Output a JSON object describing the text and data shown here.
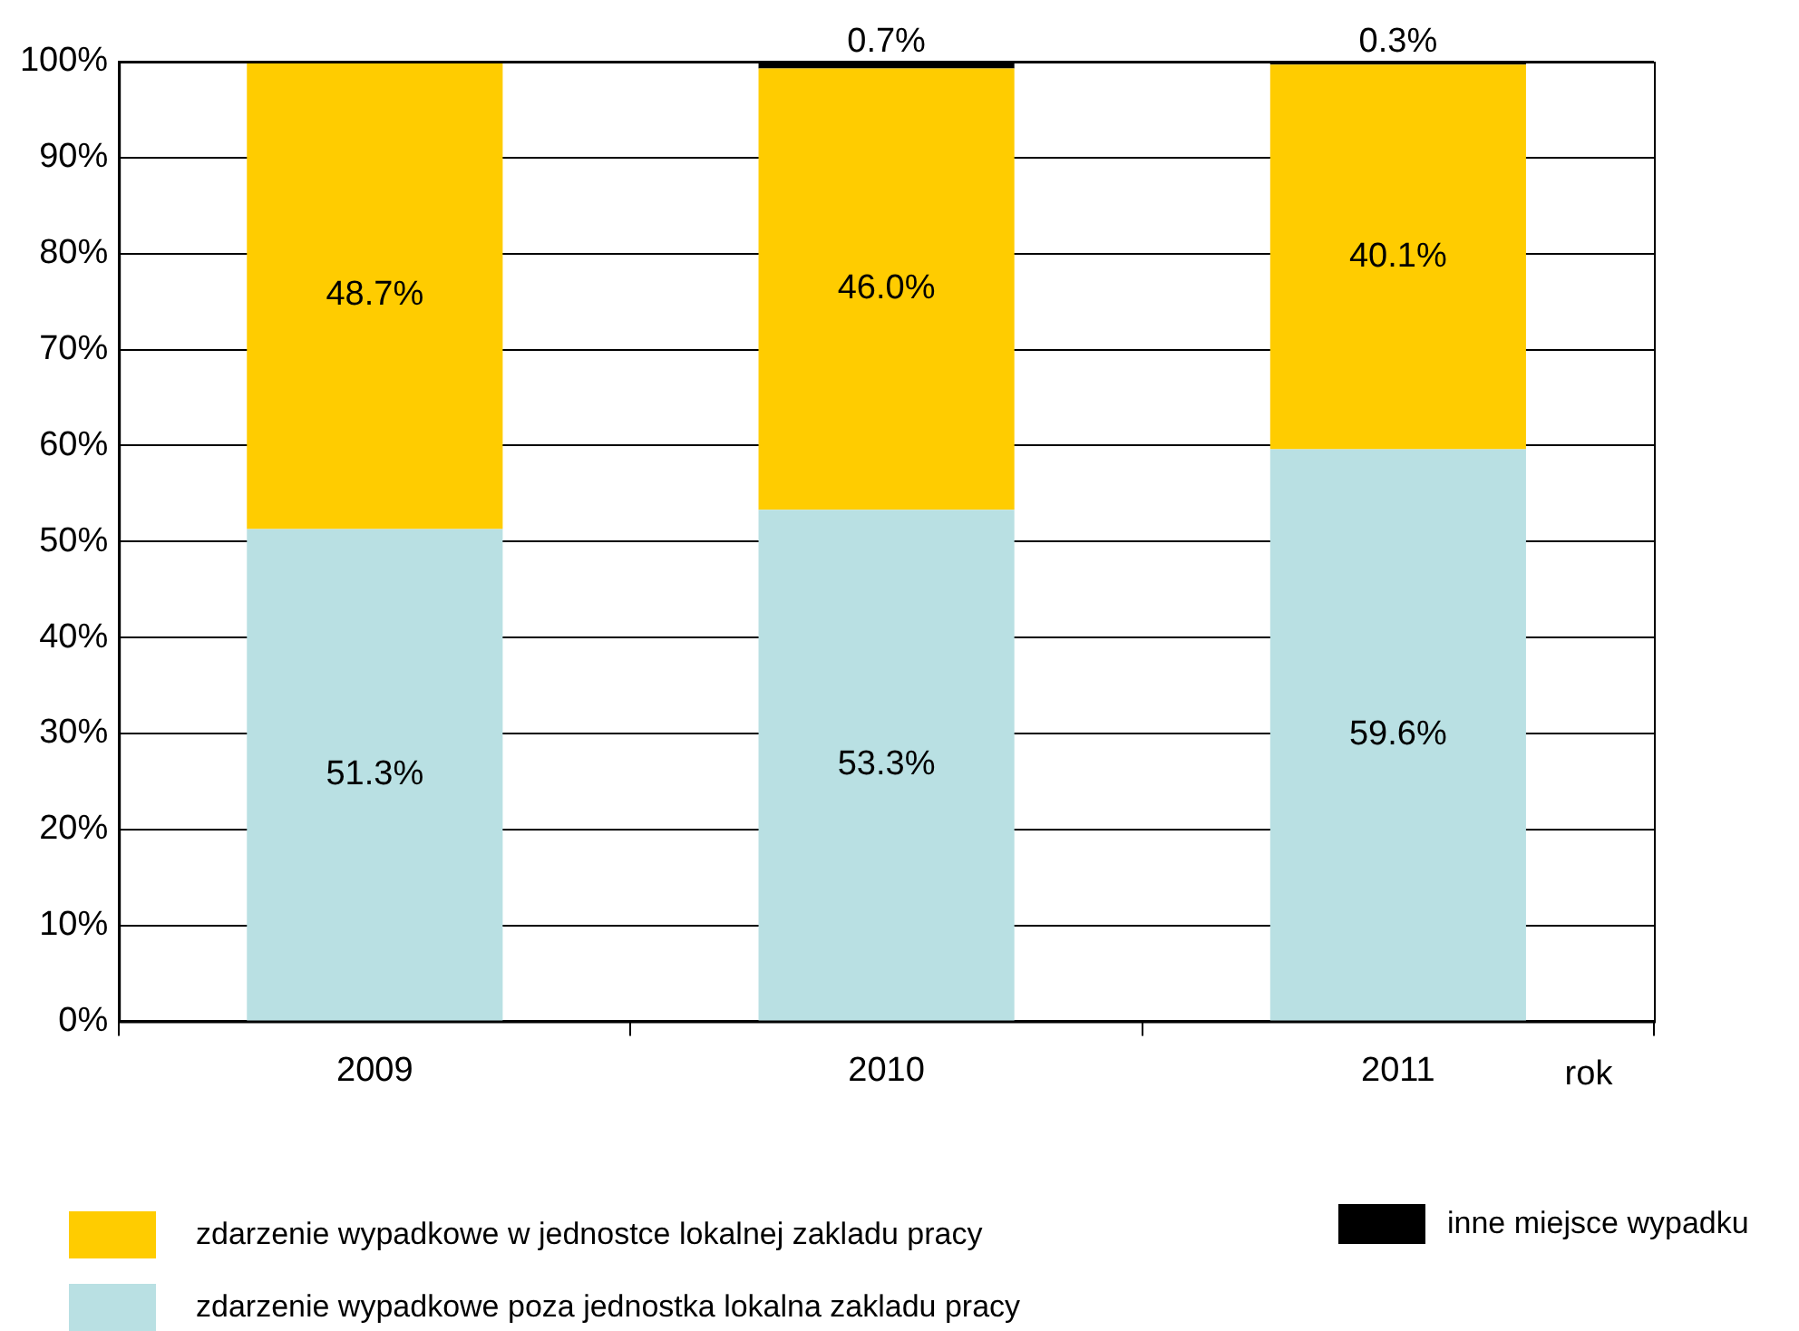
{
  "chart_data": {
    "type": "bar",
    "stacked": true,
    "categories": [
      "2009",
      "2010",
      "2011"
    ],
    "xlabel": "rok",
    "ylim": [
      0,
      100
    ],
    "yticks": [
      {
        "value": 0,
        "label": "0%"
      },
      {
        "value": 10,
        "label": "10%"
      },
      {
        "value": 20,
        "label": "20%"
      },
      {
        "value": 30,
        "label": "30%"
      },
      {
        "value": 40,
        "label": "40%"
      },
      {
        "value": 50,
        "label": "50%"
      },
      {
        "value": 60,
        "label": "60%"
      },
      {
        "value": 70,
        "label": "70%"
      },
      {
        "value": 80,
        "label": "80%"
      },
      {
        "value": 90,
        "label": "90%"
      },
      {
        "value": 100,
        "label": "100%"
      }
    ],
    "grid": "y",
    "legend": "bottom",
    "series": [
      {
        "name": "zdarzenie wypadkowe poza jednostka lokalna zakladu pracy",
        "color": "#b9e0e3",
        "values": [
          51.3,
          53.3,
          59.6
        ],
        "value_labels": [
          "51.3%",
          "53.3%",
          "59.6%"
        ]
      },
      {
        "name": "zdarzenie wypadkowe w jednostce lokalnej zakladu pracy",
        "color": "#ffcc00",
        "values": [
          48.7,
          46.0,
          40.1
        ],
        "value_labels": [
          "48.7%",
          "46.0%",
          "40.1%"
        ]
      },
      {
        "name": "inne miejsce wypadku",
        "color": "#000000",
        "values": [
          null,
          0.7,
          0.3
        ],
        "value_labels": [
          null,
          "0.7%",
          "0.3%"
        ]
      }
    ]
  }
}
